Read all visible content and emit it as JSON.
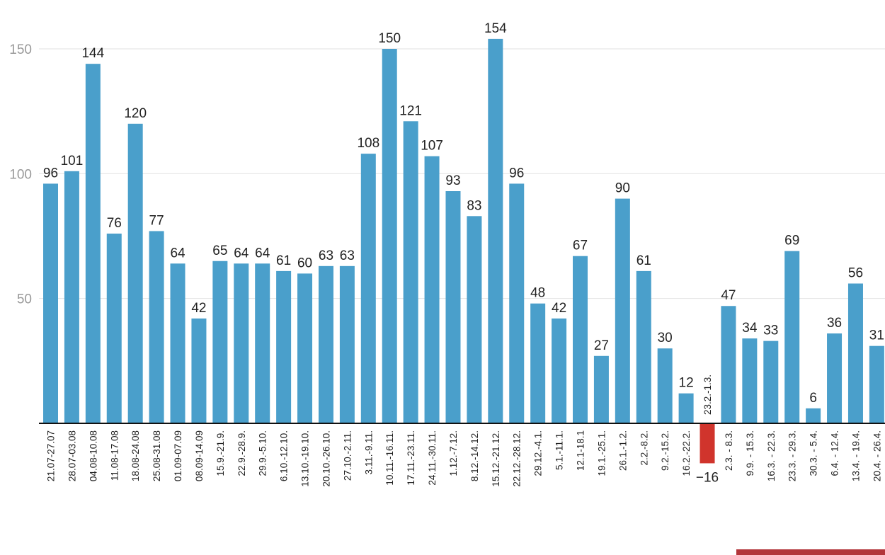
{
  "chart_data": {
    "type": "bar",
    "title": "",
    "xlabel": "",
    "ylabel": "",
    "ylim": [
      -16,
      155
    ],
    "yticks": [
      50,
      100,
      150
    ],
    "grid": true,
    "colors": {
      "positive": "#4a9fcb",
      "negative": "#d0342c",
      "axis": "#111111",
      "grid": "#e2e2e2"
    },
    "categories": [
      "21.07-27.07",
      "28.07-03.08",
      "04.08-10.08",
      "11.08-17.08",
      "18.08-24.08",
      "25.08-31.08",
      "01.09-07.09",
      "08.09-14.09",
      "15.9.-21.9.",
      "22.9.-28.9.",
      "29.9.-5.10.",
      "6.10.-12.10.",
      "13.10.-19.10.",
      "20.10.-26.10.",
      "27.10.-2.11.",
      "3.11.-9.11.",
      "10.11.-16.11.",
      "17.11.-23.11.",
      "24.11.-30.11.",
      "1.12.-7.12.",
      "8.12.-14.12.",
      "15.12.-21.12.",
      "22.12.-28.12.",
      "29.12.-4.1.",
      "5.1.-11.1.",
      "12.1-18.1",
      "19.1.-25.1.",
      "26.1.-1.2.",
      "2.2.-8.2.",
      "9.2.-15.2.",
      "16.2.-22.2.",
      "23.2.-1.3.",
      "2.3. - 8.3.",
      "9.9. - 15.3.",
      "16.3. - 22.3.",
      "23.3. - 29.3.",
      "30.3. - 5.4.",
      "6.4. - 12.4.",
      "13.4. - 19.4.",
      "20.4. - 26.4."
    ],
    "values": [
      96,
      101,
      144,
      76,
      120,
      77,
      64,
      42,
      65,
      64,
      64,
      61,
      60,
      63,
      63,
      108,
      150,
      121,
      107,
      93,
      83,
      154,
      96,
      48,
      42,
      67,
      27,
      90,
      61,
      30,
      12,
      -16,
      47,
      34,
      33,
      69,
      6,
      36,
      56,
      31
    ]
  }
}
